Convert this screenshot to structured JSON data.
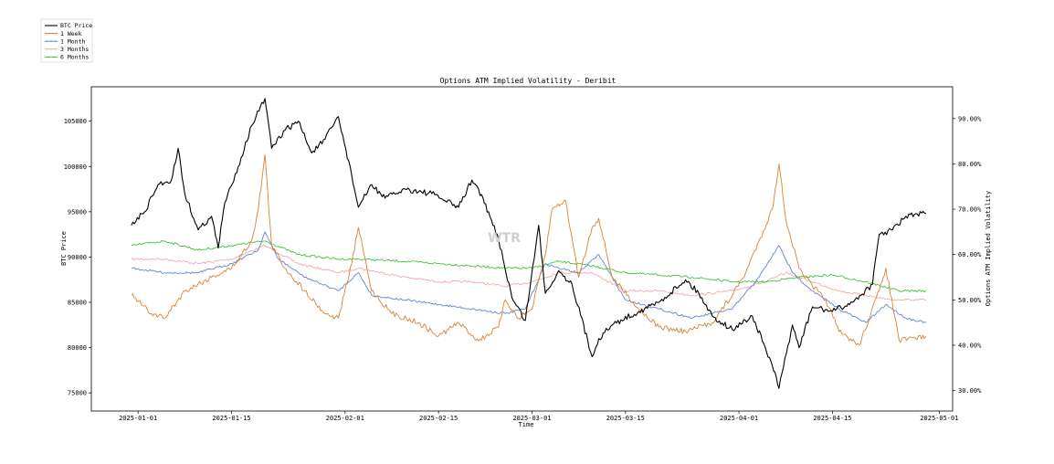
{
  "chart_data": {
    "type": "line",
    "title": "Options ATM Implied Volatility - Deribit",
    "xlabel": "Time",
    "ylabel_left": "BTC Price",
    "ylabel_right": "Options ATM Implied Volatility",
    "watermark": "WTR",
    "xlim": [
      "2024-12-25",
      "2025-05-03"
    ],
    "ylim_left": [
      73000,
      108800
    ],
    "ylim_right": [
      0.255,
      0.97
    ],
    "x_ticks": [
      "2025-01-01",
      "2025-01-15",
      "2025-02-01",
      "2025-02-15",
      "2025-03-01",
      "2025-03-15",
      "2025-04-01",
      "2025-04-15",
      "2025-05-01"
    ],
    "y_ticks_left": [
      "75000",
      "80000",
      "85000",
      "90000",
      "95000",
      "100000",
      "105000"
    ],
    "y_ticks_right": [
      "30.00%",
      "40.00%",
      "50.00%",
      "60.00%",
      "70.00%",
      "80.00%",
      "90.00%"
    ],
    "legend_position": "top-left outside",
    "series": [
      {
        "name": "BTC Price",
        "axis": "left",
        "color": "#000000",
        "x": [
          "2024-12-31",
          "2025-01-02",
          "2025-01-04",
          "2025-01-06",
          "2025-01-07",
          "2025-01-08",
          "2025-01-10",
          "2025-01-12",
          "2025-01-13",
          "2025-01-14",
          "2025-01-16",
          "2025-01-18",
          "2025-01-20",
          "2025-01-21",
          "2025-01-23",
          "2025-01-25",
          "2025-01-27",
          "2025-01-29",
          "2025-01-31",
          "2025-02-02",
          "2025-02-03",
          "2025-02-05",
          "2025-02-07",
          "2025-02-10",
          "2025-02-14",
          "2025-02-18",
          "2025-02-20",
          "2025-02-21",
          "2025-02-24",
          "2025-02-26",
          "2025-02-28",
          "2025-03-02",
          "2025-03-03",
          "2025-03-05",
          "2025-03-07",
          "2025-03-10",
          "2025-03-11",
          "2025-03-13",
          "2025-03-17",
          "2025-03-20",
          "2025-03-24",
          "2025-03-26",
          "2025-03-28",
          "2025-03-31",
          "2025-04-03",
          "2025-04-06",
          "2025-04-07",
          "2025-04-09",
          "2025-04-10",
          "2025-04-12",
          "2025-04-15",
          "2025-04-18",
          "2025-04-21",
          "2025-04-22",
          "2025-04-24",
          "2025-04-26",
          "2025-04-29"
        ],
        "values": [
          93500,
          95000,
          98000,
          98500,
          102000,
          97000,
          93000,
          94500,
          91000,
          96000,
          100000,
          104500,
          107500,
          102000,
          104000,
          105000,
          101500,
          103000,
          105500,
          99000,
          95500,
          98000,
          96500,
          97500,
          97000,
          95500,
          98500,
          97500,
          92000,
          85500,
          83000,
          93500,
          86000,
          88500,
          87000,
          79000,
          81000,
          82500,
          84000,
          85000,
          87500,
          86000,
          83500,
          82000,
          83500,
          78000,
          75500,
          82500,
          80000,
          84500,
          84000,
          85000,
          87000,
          92500,
          93000,
          94500,
          94800
        ]
      },
      {
        "name": "1 Week",
        "axis": "right",
        "color": "#d98232",
        "x": [
          "2024-12-31",
          "2025-01-03",
          "2025-01-05",
          "2025-01-08",
          "2025-01-12",
          "2025-01-15",
          "2025-01-18",
          "2025-01-19",
          "2025-01-20",
          "2025-01-21",
          "2025-01-23",
          "2025-01-26",
          "2025-01-29",
          "2025-01-31",
          "2025-02-02",
          "2025-02-03",
          "2025-02-05",
          "2025-02-08",
          "2025-02-12",
          "2025-02-15",
          "2025-02-18",
          "2025-02-21",
          "2025-02-24",
          "2025-02-25",
          "2025-02-27",
          "2025-03-01",
          "2025-03-03",
          "2025-03-04",
          "2025-03-06",
          "2025-03-08",
          "2025-03-10",
          "2025-03-11",
          "2025-03-13",
          "2025-03-17",
          "2025-03-20",
          "2025-03-24",
          "2025-03-28",
          "2025-03-31",
          "2025-04-02",
          "2025-04-04",
          "2025-04-06",
          "2025-04-07",
          "2025-04-08",
          "2025-04-10",
          "2025-04-12",
          "2025-04-14",
          "2025-04-16",
          "2025-04-19",
          "2025-04-22",
          "2025-04-23",
          "2025-04-25",
          "2025-04-29"
        ],
        "values": [
          0.51,
          0.47,
          0.46,
          0.52,
          0.55,
          0.57,
          0.63,
          0.7,
          0.82,
          0.62,
          0.57,
          0.52,
          0.47,
          0.46,
          0.58,
          0.66,
          0.52,
          0.47,
          0.45,
          0.42,
          0.45,
          0.41,
          0.44,
          0.5,
          0.46,
          0.48,
          0.6,
          0.7,
          0.72,
          0.55,
          0.66,
          0.68,
          0.55,
          0.48,
          0.44,
          0.43,
          0.45,
          0.51,
          0.56,
          0.63,
          0.7,
          0.8,
          0.68,
          0.57,
          0.53,
          0.5,
          0.43,
          0.4,
          0.52,
          0.57,
          0.41,
          0.42
        ]
      },
      {
        "name": "1 Month",
        "axis": "right",
        "color": "#5b87d6",
        "x": [
          "2024-12-31",
          "2025-01-05",
          "2025-01-10",
          "2025-01-15",
          "2025-01-19",
          "2025-01-20",
          "2025-01-22",
          "2025-01-26",
          "2025-01-31",
          "2025-02-03",
          "2025-02-05",
          "2025-02-10",
          "2025-02-15",
          "2025-02-20",
          "2025-02-25",
          "2025-02-28",
          "2025-03-03",
          "2025-03-05",
          "2025-03-08",
          "2025-03-11",
          "2025-03-15",
          "2025-03-20",
          "2025-03-25",
          "2025-03-31",
          "2025-04-04",
          "2025-04-07",
          "2025-04-09",
          "2025-04-12",
          "2025-04-16",
          "2025-04-20",
          "2025-04-23",
          "2025-04-26",
          "2025-04-29"
        ],
        "values": [
          0.57,
          0.56,
          0.56,
          0.58,
          0.61,
          0.65,
          0.59,
          0.55,
          0.52,
          0.56,
          0.51,
          0.5,
          0.49,
          0.48,
          0.47,
          0.48,
          0.58,
          0.57,
          0.56,
          0.6,
          0.5,
          0.48,
          0.46,
          0.48,
          0.55,
          0.62,
          0.56,
          0.52,
          0.48,
          0.45,
          0.49,
          0.46,
          0.45
        ]
      },
      {
        "name": "3 Months",
        "axis": "right",
        "color": "#f5a9a9",
        "x": [
          "2024-12-31",
          "2025-01-05",
          "2025-01-10",
          "2025-01-15",
          "2025-01-20",
          "2025-01-25",
          "2025-01-31",
          "2025-02-03",
          "2025-02-10",
          "2025-02-15",
          "2025-02-20",
          "2025-02-25",
          "2025-03-01",
          "2025-03-05",
          "2025-03-10",
          "2025-03-15",
          "2025-03-20",
          "2025-03-25",
          "2025-03-31",
          "2025-04-05",
          "2025-04-08",
          "2025-04-12",
          "2025-04-16",
          "2025-04-20",
          "2025-04-24",
          "2025-04-29"
        ],
        "values": [
          0.59,
          0.59,
          0.58,
          0.59,
          0.62,
          0.58,
          0.56,
          0.57,
          0.55,
          0.54,
          0.54,
          0.53,
          0.54,
          0.56,
          0.56,
          0.52,
          0.52,
          0.51,
          0.52,
          0.54,
          0.56,
          0.54,
          0.52,
          0.51,
          0.5,
          0.5
        ]
      },
      {
        "name": "6 Months",
        "axis": "right",
        "color": "#3ec33e",
        "x": [
          "2024-12-31",
          "2025-01-05",
          "2025-01-10",
          "2025-01-15",
          "2025-01-20",
          "2025-01-25",
          "2025-01-31",
          "2025-02-03",
          "2025-02-10",
          "2025-02-15",
          "2025-02-20",
          "2025-02-25",
          "2025-03-01",
          "2025-03-05",
          "2025-03-10",
          "2025-03-15",
          "2025-03-20",
          "2025-03-25",
          "2025-03-31",
          "2025-04-05",
          "2025-04-10",
          "2025-04-15",
          "2025-04-20",
          "2025-04-25",
          "2025-04-29"
        ],
        "values": [
          0.62,
          0.63,
          0.61,
          0.62,
          0.63,
          0.6,
          0.59,
          0.59,
          0.585,
          0.58,
          0.575,
          0.57,
          0.57,
          0.585,
          0.575,
          0.56,
          0.555,
          0.55,
          0.54,
          0.54,
          0.55,
          0.555,
          0.54,
          0.52,
          0.52
        ]
      }
    ]
  }
}
